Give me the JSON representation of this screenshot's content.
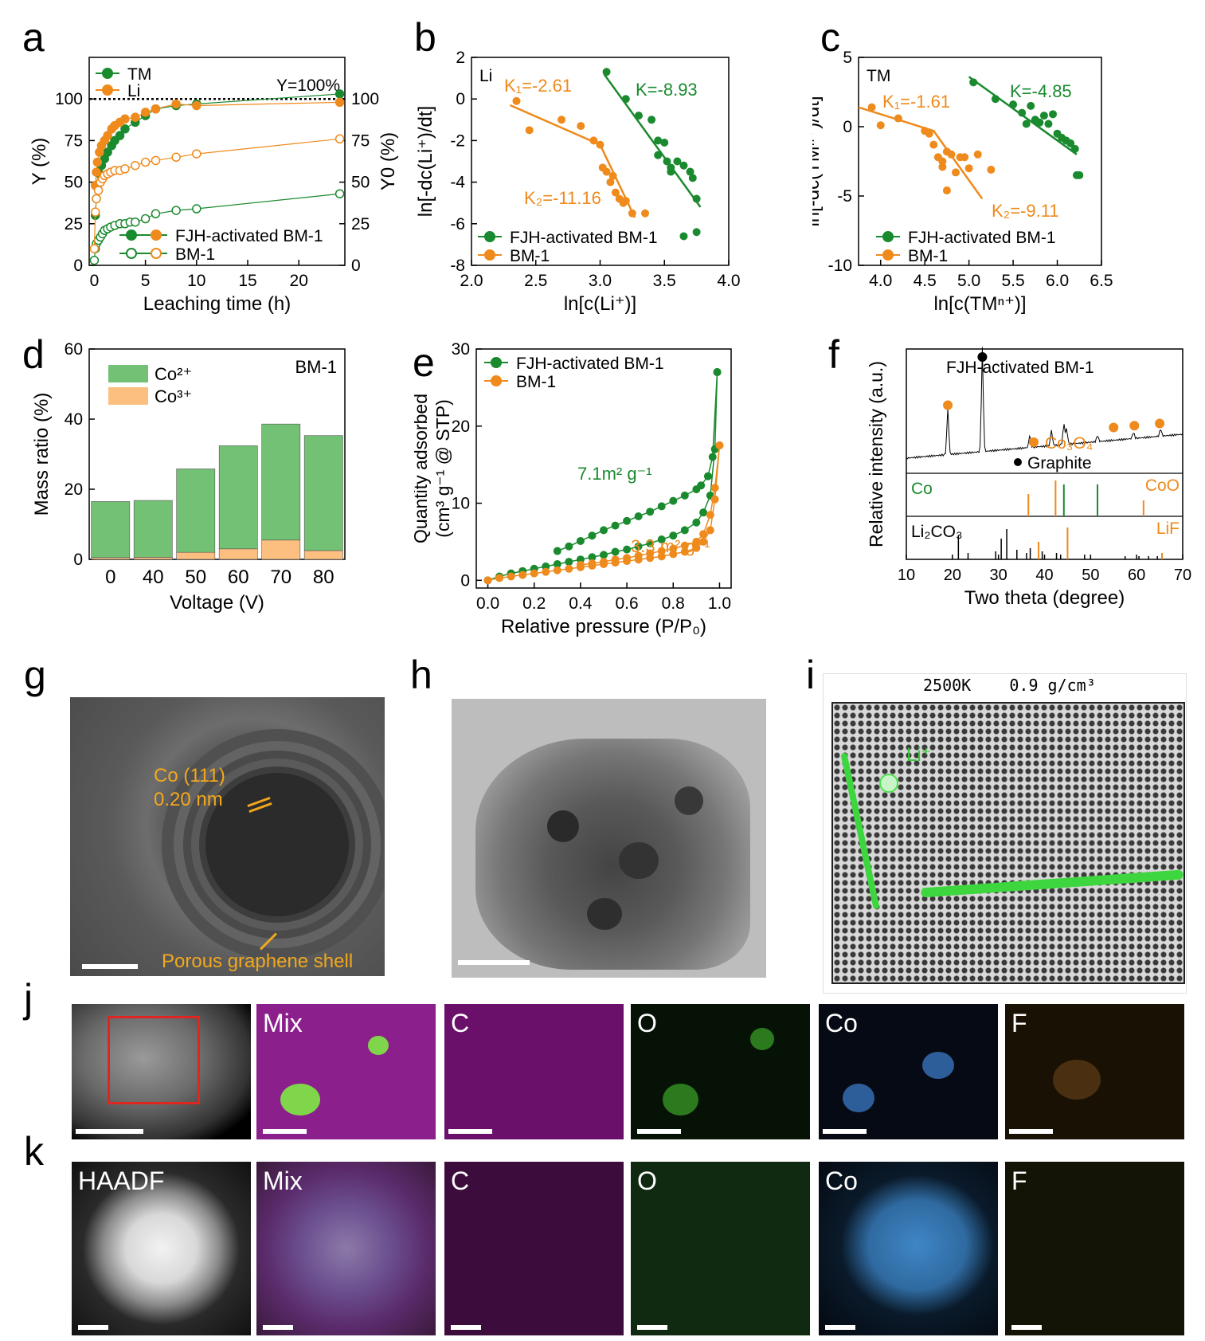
{
  "panel_letters": [
    "a",
    "b",
    "c",
    "d",
    "e",
    "f",
    "g",
    "h",
    "i",
    "j",
    "k"
  ],
  "colors": {
    "green": "#1a8a2e",
    "orange": "#ef8a1c",
    "black": "#000000",
    "bar_green": "#72c174",
    "bar_orange": "#fdbf80"
  },
  "chart_data": [
    {
      "id": "a",
      "type": "scatter",
      "xlabel": "Leaching time (h)",
      "ylabel": "Y (%)",
      "y2label": "Y0 (%)",
      "xlim": [
        -0.5,
        24.5
      ],
      "ylim": [
        0,
        125
      ],
      "xticks": [
        0,
        5,
        10,
        15,
        20
      ],
      "yticks": [
        0,
        25,
        50,
        75,
        100
      ],
      "legend_top": [
        {
          "name": "TM",
          "color": "#1a8a2e"
        },
        {
          "name": "Li",
          "color": "#ef8a1c"
        }
      ],
      "legend_bottom": [
        {
          "name": "FJH-activated BM-1",
          "filled": true
        },
        {
          "name": "BM-1",
          "filled": false
        }
      ],
      "annotation": "Y=100%",
      "series": [
        {
          "name": "TM FJH-activated BM-1",
          "color": "#1a8a2e",
          "filled": true,
          "x": [
            0.1,
            0.2,
            0.3,
            0.5,
            0.7,
            1,
            1.3,
            1.7,
            2,
            2.5,
            3,
            4,
            5,
            6,
            8,
            10,
            24
          ],
          "y": [
            30,
            40,
            48,
            55,
            60,
            64,
            68,
            72,
            75,
            78,
            82,
            86,
            90,
            94,
            96,
            97,
            103
          ]
        },
        {
          "name": "Li FJH-activated BM-1",
          "color": "#ef8a1c",
          "filled": true,
          "x": [
            0.1,
            0.2,
            0.3,
            0.5,
            0.7,
            1,
            1.3,
            1.7,
            2,
            2.5,
            3,
            4,
            5,
            6,
            8,
            10,
            24
          ],
          "y": [
            48,
            56,
            62,
            68,
            72,
            75,
            78,
            82,
            84,
            86,
            88,
            89,
            92,
            94,
            97,
            96,
            98
          ]
        },
        {
          "name": "TM BM-1",
          "color": "#1a8a2e",
          "filled": false,
          "x": [
            0,
            0.1,
            0.2,
            0.4,
            0.6,
            0.8,
            1,
            1.3,
            1.6,
            2,
            2.5,
            3,
            3.5,
            4,
            5,
            6,
            8,
            10,
            24
          ],
          "y": [
            3,
            10,
            13,
            15,
            17,
            19,
            21,
            22,
            23,
            24,
            25,
            25,
            26,
            26,
            28,
            31,
            33,
            34,
            43
          ]
        },
        {
          "name": "Li BM-1",
          "color": "#ef8a1c",
          "filled": false,
          "x": [
            0,
            0.1,
            0.2,
            0.4,
            0.6,
            0.8,
            1,
            1.3,
            1.6,
            2,
            2.5,
            3,
            4,
            5,
            6,
            8,
            10,
            24
          ],
          "y": [
            10,
            32,
            40,
            45,
            50,
            52,
            54,
            55,
            56,
            57,
            57,
            58,
            60,
            62,
            63,
            65,
            67,
            76
          ]
        }
      ]
    },
    {
      "id": "b",
      "type": "scatter",
      "xlabel": "ln[c(Li⁺)]",
      "ylabel": "ln[-dc(Li⁺)/dt]",
      "xlim": [
        2.0,
        4.0
      ],
      "ylim": [
        -8,
        2
      ],
      "xticks": [
        2.0,
        2.5,
        3.0,
        3.5,
        4.0
      ],
      "yticks": [
        -8,
        -6,
        -4,
        -2,
        0,
        2
      ],
      "corner_label": "Li",
      "legend": [
        {
          "name": "FJH-activated BM-1",
          "color": "#1a8a2e"
        },
        {
          "name": "BM-1",
          "color": "#ef8a1c"
        }
      ],
      "annotations": [
        {
          "text": "K₁=-2.61",
          "color": "#ef8a1c"
        },
        {
          "text": "K=-8.93",
          "color": "#1a8a2e"
        },
        {
          "text": "K₂=-11.16",
          "color": "#ef8a1c"
        }
      ],
      "series": [
        {
          "name": "FJH-activated BM-1",
          "color": "#1a8a2e",
          "x": [
            3.05,
            3.2,
            3.3,
            3.4,
            3.45,
            3.5,
            3.52,
            3.55,
            3.6,
            3.65,
            3.7,
            3.72,
            3.75,
            3.75,
            3.65,
            3.55,
            3.45
          ],
          "y": [
            1.3,
            0.0,
            -0.8,
            -1.0,
            -2.0,
            -2.1,
            -3.0,
            -3.3,
            -3.0,
            -3.2,
            -3.5,
            -3.8,
            -4.8,
            -6.4,
            -6.6,
            -3.5,
            -2.7
          ]
        },
        {
          "name": "BM-1",
          "color": "#ef8a1c",
          "x": [
            2.35,
            2.45,
            2.7,
            2.85,
            2.95,
            3.0,
            3.02,
            3.05,
            3.08,
            3.1,
            3.12,
            3.15,
            3.18,
            3.2,
            3.25,
            3.35
          ],
          "y": [
            -0.1,
            -1.5,
            -1.0,
            -1.3,
            -2.0,
            -2.2,
            -3.3,
            -3.5,
            -4.0,
            -3.7,
            -4.5,
            -4.8,
            -5.0,
            -4.9,
            -5.5,
            -5.5
          ]
        }
      ],
      "fits": [
        {
          "color": "#ef8a1c",
          "points": [
            [
              2.3,
              -0.3
            ],
            [
              3.0,
              -2.2
            ],
            [
              3.27,
              -5.7
            ]
          ]
        },
        {
          "color": "#1a8a2e",
          "points": [
            [
              3.03,
              1.2
            ],
            [
              3.78,
              -5.2
            ]
          ]
        }
      ]
    },
    {
      "id": "c",
      "type": "scatter",
      "xlabel": "ln[c(TMⁿ⁺)]",
      "ylabel": "ln[-dc(TMⁿ⁺)/dt]",
      "xlim": [
        3.75,
        6.5
      ],
      "ylim": [
        -10,
        5
      ],
      "xticks": [
        4.0,
        4.5,
        5.0,
        5.5,
        6.0,
        6.5
      ],
      "yticks": [
        -10,
        -5,
        0,
        5
      ],
      "corner_label": "TM",
      "legend": [
        {
          "name": "FJH-activated BM-1",
          "color": "#1a8a2e"
        },
        {
          "name": "BM-1",
          "color": "#ef8a1c"
        }
      ],
      "annotations": [
        {
          "text": "K₁=-1.61",
          "color": "#ef8a1c"
        },
        {
          "text": "K=-4.85",
          "color": "#1a8a2e"
        },
        {
          "text": "K₂=-9.11",
          "color": "#ef8a1c"
        }
      ],
      "series": [
        {
          "name": "FJH-activated BM-1",
          "color": "#1a8a2e",
          "x": [
            5.05,
            5.3,
            5.5,
            5.6,
            5.7,
            5.75,
            5.8,
            5.85,
            5.9,
            5.95,
            6.0,
            6.05,
            6.1,
            6.15,
            6.2,
            6.22,
            6.25,
            5.65
          ],
          "y": [
            3.2,
            2.0,
            1.6,
            1.0,
            1.5,
            0.5,
            0.3,
            0.8,
            0.2,
            0.9,
            -0.5,
            -0.8,
            -1.0,
            -1.2,
            -1.6,
            -3.5,
            -3.5,
            0.2
          ]
        },
        {
          "name": "BM-1",
          "color": "#ef8a1c",
          "x": [
            3.9,
            4.0,
            4.2,
            4.5,
            4.55,
            4.6,
            4.65,
            4.7,
            4.75,
            4.8,
            4.85,
            4.9,
            4.95,
            5.0,
            5.1,
            5.25,
            4.75,
            4.7
          ],
          "y": [
            1.4,
            0.1,
            0.6,
            -0.3,
            -0.5,
            -1.3,
            -2.2,
            -2.5,
            -1.8,
            -2.0,
            -3.3,
            -2.2,
            -2.2,
            -3.0,
            -2.0,
            -3.1,
            -4.6,
            -2.9
          ]
        }
      ],
      "fits": [
        {
          "color": "#ef8a1c",
          "points": [
            [
              3.75,
              1.4
            ],
            [
              4.6,
              -0.3
            ],
            [
              5.15,
              -5.2
            ]
          ]
        },
        {
          "color": "#1a8a2e",
          "points": [
            [
              5.0,
              3.6
            ],
            [
              6.22,
              -2.0
            ]
          ]
        }
      ]
    },
    {
      "id": "d",
      "type": "bar",
      "xlabel": "Voltage (V)",
      "ylabel": "Mass ratio (%)",
      "ylim": [
        0,
        60
      ],
      "yticks": [
        0,
        20,
        40,
        60
      ],
      "corner_label": "BM-1",
      "categories": [
        "0",
        "40",
        "50",
        "60",
        "70",
        "80"
      ],
      "legend": [
        {
          "name": "Co²⁺",
          "color": "#72c174"
        },
        {
          "name": "Co³⁺",
          "color": "#fdbf80"
        }
      ],
      "series": [
        {
          "name": "Co³⁺",
          "color": "#fdbf80",
          "values": [
            0.5,
            0.6,
            2.0,
            3.0,
            5.5,
            2.5
          ]
        },
        {
          "name": "Co²⁺",
          "color": "#72c174",
          "values": [
            16.0,
            16.2,
            23.8,
            29.4,
            33.1,
            32.8
          ]
        }
      ]
    },
    {
      "id": "e",
      "type": "line",
      "xlabel": "Relative pressure (P/P₀)",
      "ylabel_line1": "Quantity adsorbed",
      "ylabel_line2": "(cm³ g⁻¹ @ STP)",
      "xlim": [
        -0.05,
        1.05
      ],
      "ylim": [
        -1,
        30
      ],
      "xticks": [
        0.0,
        0.2,
        0.4,
        0.6,
        0.8,
        1.0
      ],
      "yticks": [
        0,
        10,
        20,
        30
      ],
      "legend": [
        {
          "name": "FJH-activated BM-1",
          "color": "#1a8a2e"
        },
        {
          "name": "BM-1",
          "color": "#ef8a1c"
        }
      ],
      "annotations": [
        {
          "text": "7.1m² g⁻¹",
          "color": "#1a8a2e"
        },
        {
          "text": "3.3 m² g⁻¹",
          "color": "#ef8a1c"
        }
      ],
      "series": [
        {
          "name": "FJH-activated BM-1",
          "color": "#1a8a2e",
          "x_ads": [
            0.0,
            0.05,
            0.1,
            0.15,
            0.2,
            0.25,
            0.3,
            0.35,
            0.4,
            0.45,
            0.5,
            0.55,
            0.6,
            0.65,
            0.7,
            0.75,
            0.8,
            0.85,
            0.9,
            0.93,
            0.96,
            0.98,
            0.99
          ],
          "y_ads": [
            0.0,
            0.5,
            0.9,
            1.2,
            1.5,
            1.8,
            2.1,
            2.4,
            2.7,
            3.0,
            3.3,
            3.7,
            4.0,
            4.4,
            4.8,
            5.3,
            5.8,
            6.5,
            7.5,
            8.8,
            11,
            17,
            27
          ],
          "x_des": [
            0.99,
            0.97,
            0.95,
            0.92,
            0.9,
            0.85,
            0.8,
            0.75,
            0.7,
            0.65,
            0.6,
            0.55,
            0.5,
            0.45,
            0.4,
            0.35,
            0.3
          ],
          "y_des": [
            27,
            16,
            13.5,
            12.3,
            11.8,
            11.0,
            10.3,
            9.6,
            8.9,
            8.3,
            7.7,
            7.1,
            6.5,
            5.8,
            5.1,
            4.4,
            3.8
          ]
        },
        {
          "name": "BM-1",
          "color": "#ef8a1c",
          "x_ads": [
            0.0,
            0.05,
            0.1,
            0.15,
            0.2,
            0.25,
            0.3,
            0.35,
            0.4,
            0.45,
            0.5,
            0.55,
            0.6,
            0.65,
            0.7,
            0.75,
            0.8,
            0.85,
            0.9,
            0.93,
            0.96,
            0.98,
            1.0
          ],
          "y_ads": [
            0.0,
            0.3,
            0.5,
            0.7,
            0.9,
            1.1,
            1.3,
            1.5,
            1.7,
            1.9,
            2.1,
            2.3,
            2.5,
            2.7,
            2.9,
            3.1,
            3.4,
            3.7,
            4.2,
            5.0,
            6.5,
            10.5,
            17.5
          ],
          "x_des": [
            1.0,
            0.98,
            0.96,
            0.93,
            0.9,
            0.85,
            0.8,
            0.75,
            0.7,
            0.65,
            0.6,
            0.55,
            0.5,
            0.45,
            0.4
          ],
          "y_des": [
            17.5,
            12,
            8.5,
            6.0,
            5.0,
            4.5,
            4.1,
            3.8,
            3.5,
            3.2,
            2.9,
            2.7,
            2.4,
            2.2,
            2.0
          ]
        }
      ]
    },
    {
      "id": "f",
      "type": "line",
      "xlabel": "Two theta (degree)",
      "ylabel": "Relative intensity (a.u.)",
      "xlim": [
        10,
        70
      ],
      "xticks": [
        10,
        20,
        30,
        40,
        50,
        60,
        70
      ],
      "top_label": "FJH-activated BM-1",
      "legend": [
        {
          "name": "Co₃O₄",
          "color": "#ef8a1c"
        },
        {
          "name": "Graphite",
          "color": "#000000"
        }
      ],
      "reference_labels": [
        {
          "text": "Co",
          "color": "#1a8a2e"
        },
        {
          "text": "CoO",
          "color": "#ef8a1c"
        },
        {
          "text": "Li₂CO₃",
          "color": "#000000"
        },
        {
          "text": "LiF",
          "color": "#ef8a1c"
        }
      ],
      "markers": [
        {
          "x": 19.0,
          "color": "#ef8a1c"
        },
        {
          "x": 26.5,
          "color": "#000000"
        },
        {
          "x": 55.0,
          "color": "#ef8a1c"
        },
        {
          "x": 59.5,
          "color": "#ef8a1c"
        },
        {
          "x": 65.0,
          "color": "#ef8a1c"
        }
      ],
      "peaks_main": [
        {
          "x": 19.0,
          "h": 0.45
        },
        {
          "x": 26.5,
          "h": 1.0
        },
        {
          "x": 36.8,
          "h": 0.12
        },
        {
          "x": 41.5,
          "h": 0.15
        },
        {
          "x": 44.2,
          "h": 0.2
        },
        {
          "x": 44.8,
          "h": 0.15
        },
        {
          "x": 51.5,
          "h": 0.06
        },
        {
          "x": 59.3,
          "h": 0.06
        },
        {
          "x": 65.2,
          "h": 0.07
        }
      ],
      "ref_Co": [
        44.2,
        51.5
      ],
      "ref_CoO": [
        36.5,
        42.4,
        61.5
      ],
      "ref_Li2CO3": [
        21.3,
        23.4,
        29.4,
        30.6,
        31.8,
        34.0,
        36.1,
        36.9,
        39.5,
        42.6,
        43.5,
        48.7,
        57.5,
        60.5,
        62.6,
        64.5
      ],
      "ref_LiF": [
        38.7,
        45.0,
        65.5
      ]
    }
  ],
  "images": {
    "g": {
      "label1": "Co (111)",
      "label2": "0.20 nm",
      "label3": "Porous graphene shell"
    },
    "i": {
      "header": "2500K    0.9 g/cm³",
      "ion_label": "Li⁺"
    },
    "j": [
      "",
      "Mix",
      "C",
      "O",
      "Co",
      "F"
    ],
    "k": [
      "HAADF",
      "Mix",
      "C",
      "O",
      "Co",
      "F"
    ]
  }
}
